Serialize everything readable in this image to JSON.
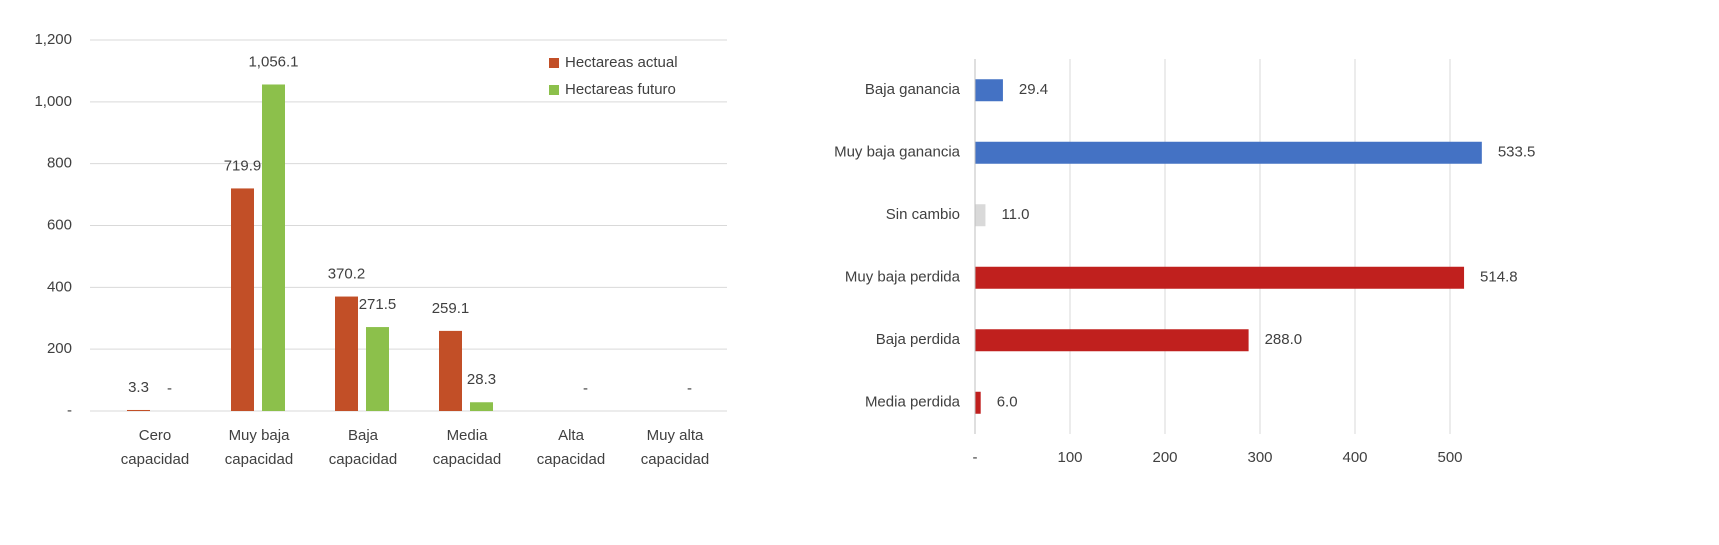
{
  "chart_data": [
    {
      "type": "bar",
      "orientation": "vertical",
      "categories": [
        "Cero capacidad",
        "Muy baja capacidad",
        "Baja capacidad",
        "Media capacidad",
        "Alta capacidad",
        "Muy alta capacidad"
      ],
      "series": [
        {
          "name": "Hectareas actual",
          "color": "#c24f27",
          "values": [
            3.3,
            719.9,
            370.2,
            259.1,
            null,
            null
          ],
          "value_labels": [
            "3.3",
            "719.9",
            "370.2",
            "259.1",
            null,
            null
          ]
        },
        {
          "name": "Hectareas futuro",
          "color": "#8cc04b",
          "values": [
            0,
            1056.1,
            271.5,
            28.3,
            0,
            0
          ],
          "value_labels": [
            "-",
            "1,056.1",
            "271.5",
            "28.3",
            "-",
            "-"
          ]
        }
      ],
      "ylim": [
        0,
        1200
      ],
      "yticks": [
        {
          "value": 0,
          "label": "-"
        },
        200,
        400,
        600,
        800,
        {
          "value": 1000,
          "label": "1,000"
        },
        {
          "value": 1200,
          "label": "1,200"
        }
      ],
      "grid": true,
      "legend": "top-right"
    },
    {
      "type": "bar",
      "orientation": "horizontal",
      "categories": [
        "Baja ganancia",
        "Muy baja ganancia",
        "Sin cambio",
        "Muy baja perdida",
        "Baja perdida",
        "Media perdida"
      ],
      "values": [
        29.4,
        533.5,
        11.0,
        514.8,
        288.0,
        6.0
      ],
      "value_labels": [
        "29.4",
        "533.5",
        "11.0",
        "514.8",
        "288.0",
        "6.0"
      ],
      "colors": [
        "#4472c4",
        "#4472c4",
        "#d9d9d9",
        "#c0201e",
        "#c0201e",
        "#c0201e"
      ],
      "xlim": [
        0,
        600
      ],
      "xticks": [
        {
          "value": 0,
          "label": "-"
        },
        100,
        200,
        300,
        400,
        500
      ],
      "grid": true
    }
  ]
}
